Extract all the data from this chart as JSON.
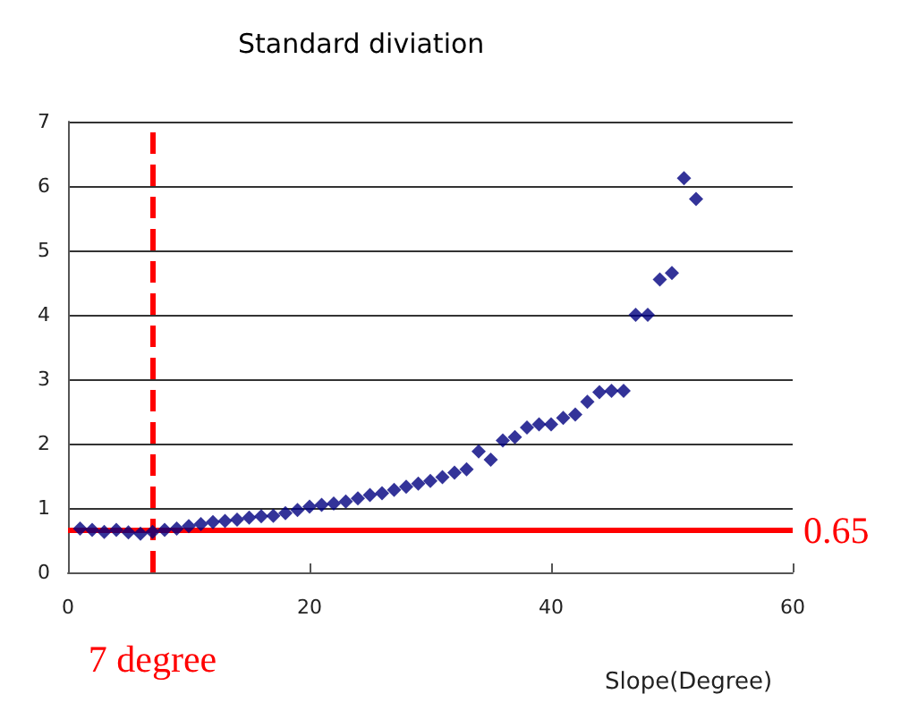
{
  "chart_data": {
    "type": "scatter",
    "title": "Standard diviation",
    "xlabel": "Slope(Degree)",
    "x": [
      1,
      2,
      3,
      4,
      5,
      6,
      7,
      8,
      9,
      10,
      11,
      12,
      13,
      14,
      15,
      16,
      17,
      18,
      19,
      20,
      21,
      22,
      23,
      24,
      25,
      26,
      27,
      28,
      29,
      30,
      31,
      32,
      33,
      34,
      35,
      36,
      37,
      38,
      39,
      40,
      41,
      42,
      43,
      44,
      45,
      46,
      47,
      48,
      49,
      50,
      51,
      52
    ],
    "series": [
      {
        "color": "#000080",
        "values": [
          0.68,
          0.66,
          0.63,
          0.66,
          0.62,
          0.6,
          0.63,
          0.66,
          0.68,
          0.72,
          0.75,
          0.78,
          0.8,
          0.82,
          0.85,
          0.87,
          0.88,
          0.92,
          0.97,
          1.02,
          1.05,
          1.07,
          1.1,
          1.15,
          1.2,
          1.23,
          1.28,
          1.33,
          1.38,
          1.42,
          1.48,
          1.55,
          1.6,
          1.88,
          1.75,
          2.05,
          2.1,
          2.25,
          2.3,
          2.3,
          2.4,
          2.45,
          2.65,
          2.8,
          2.82,
          2.82,
          4.0,
          4.0,
          4.55,
          4.65,
          6.12,
          5.8
        ]
      }
    ],
    "xlim": [
      0,
      60
    ],
    "xticks": [
      0,
      20,
      40,
      60
    ],
    "ylim": [
      0,
      7
    ],
    "yticks": [
      0,
      1,
      2,
      3,
      4,
      5,
      6,
      7
    ],
    "grid": "y",
    "marker": "diamond",
    "ref_lines": [
      {
        "axis": "y",
        "value": 0.65,
        "label": "0.65",
        "color": "#ff0000",
        "line_style": "solid"
      },
      {
        "axis": "x",
        "value": 7,
        "label": "7 degree",
        "color": "#ff0000",
        "line_style": "dashed"
      }
    ]
  }
}
